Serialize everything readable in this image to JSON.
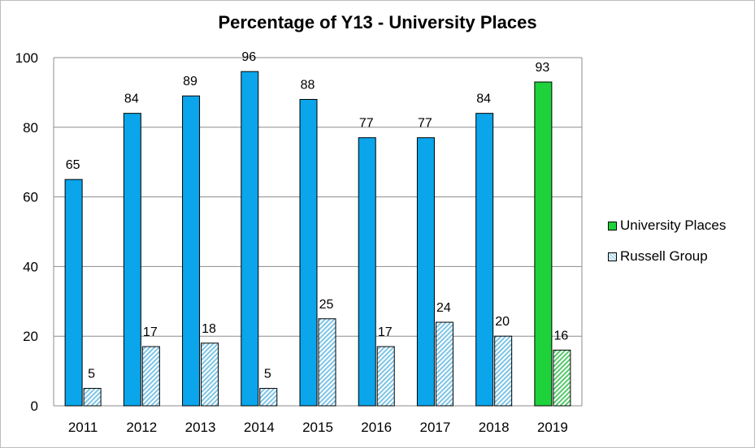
{
  "chart_data": {
    "type": "bar",
    "title": "Percentage of Y13 - University Places",
    "categories": [
      "2011",
      "2012",
      "2013",
      "2014",
      "2015",
      "2016",
      "2017",
      "2018",
      "2019"
    ],
    "series": [
      {
        "name": "University Places",
        "values": [
          65,
          84,
          89,
          96,
          88,
          77,
          77,
          84,
          93
        ]
      },
      {
        "name": "Russell Group",
        "values": [
          5,
          17,
          18,
          5,
          25,
          17,
          24,
          20,
          16
        ]
      }
    ],
    "ylim": [
      0,
      100
    ],
    "yticks": [
      0,
      20,
      40,
      60,
      80,
      100
    ],
    "grid": true,
    "legend_position": "right",
    "colors": {
      "university": "#0aa5ea",
      "university_highlight": "#1ed23b",
      "russell_hatch": "#7cc4e6",
      "russell_hatch_highlight": "#53c96a"
    }
  }
}
